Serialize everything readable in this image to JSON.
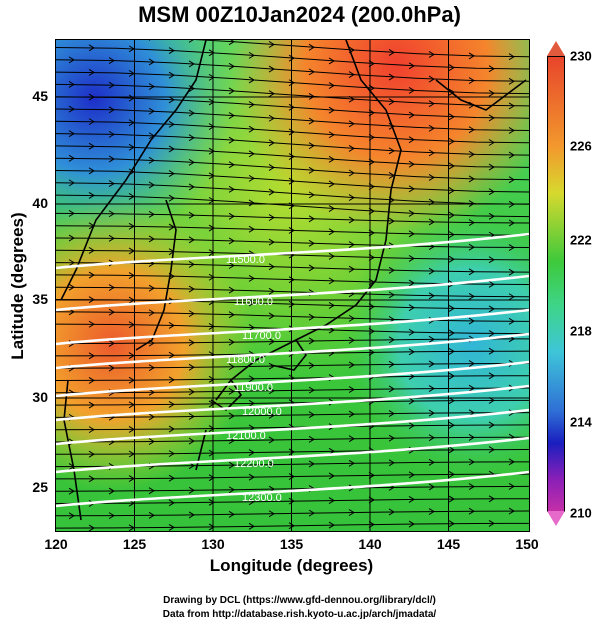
{
  "title": "MSM 00Z10Jan2024 (200.0hPa)",
  "axes": {
    "xlabel": "Longitude (degrees)",
    "ylabel": "Latitude  (degrees)",
    "x_ticks": [
      "120",
      "125",
      "130",
      "135",
      "140",
      "145",
      "150"
    ],
    "y_ticks": [
      "45",
      "40",
      "35",
      "30",
      "25"
    ]
  },
  "colorbar": {
    "labels": [
      "230",
      "226",
      "222",
      "218",
      "214",
      "210"
    ],
    "min": 210,
    "max": 230
  },
  "contours": [
    {
      "label": "11500.0"
    },
    {
      "label": "11600.0"
    },
    {
      "label": "11700.0"
    },
    {
      "label": "11800.0"
    },
    {
      "label": "11900.0"
    },
    {
      "label": "12000.0"
    },
    {
      "label": "12100.0"
    },
    {
      "label": "12200.0"
    },
    {
      "label": "12300.0"
    }
  ],
  "credits": {
    "line1": "Drawing by DCL (https://www.gfd-dennou.org/library/dcl/)",
    "line2": "Data from http://database.rish.kyoto-u.ac.jp/arch/jmadata/"
  },
  "colors": {
    "high_temp": "#e83a2a",
    "mid_temp": "#3ecb3a",
    "low_temp": "#2a2ad0",
    "contour": "#ffffff"
  }
}
